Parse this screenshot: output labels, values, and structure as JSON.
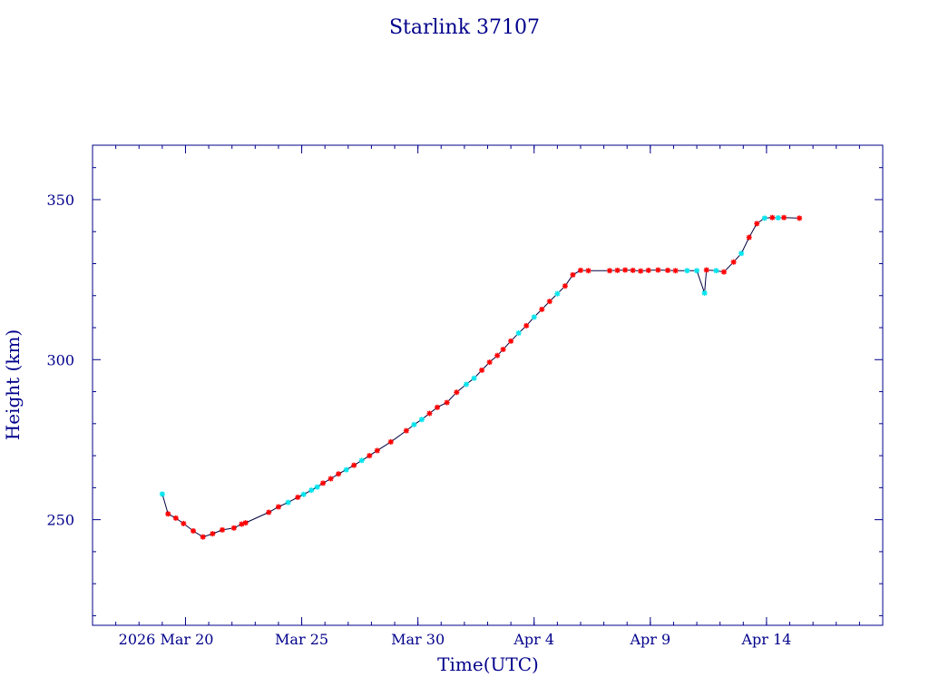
{
  "chart_data": {
    "type": "scatter",
    "title": "Starlink 37107",
    "xlabel": "Time(UTC)",
    "ylabel": "Height (km)",
    "x_tick_labels": [
      "2026 Mar 20",
      "Mar 25",
      "Mar 30",
      "Apr  4",
      "Apr  9",
      "Apr 14"
    ],
    "x_tick_dates": [
      "2026-03-20",
      "2026-03-25",
      "2026-03-30",
      "2026-04-04",
      "2026-04-09",
      "2026-04-14"
    ],
    "y_tick_labels": [
      "250",
      "300",
      "350"
    ],
    "y_ticks": [
      250,
      300,
      350
    ],
    "xlim": [
      "2026-03-16T00:00",
      "2026-04-19T00:00"
    ],
    "ylim": [
      217,
      367
    ],
    "grid": false,
    "legend": false,
    "colors": {
      "axes": "#00008b",
      "line": "#000040",
      "series_red": "#ff0000",
      "series_cyan": "#00e5ee"
    },
    "points": [
      {
        "x": "2026-03-19T00:00",
        "y": 258.0,
        "c": "cyan"
      },
      {
        "x": "2026-03-19T06:00",
        "y": 251.8,
        "c": "red"
      },
      {
        "x": "2026-03-19T14:00",
        "y": 250.5,
        "c": "red"
      },
      {
        "x": "2026-03-19T22:00",
        "y": 248.8,
        "c": "red"
      },
      {
        "x": "2026-03-20T08:00",
        "y": 246.5,
        "c": "red"
      },
      {
        "x": "2026-03-20T18:00",
        "y": 244.6,
        "c": "red"
      },
      {
        "x": "2026-03-21T04:00",
        "y": 245.6,
        "c": "red"
      },
      {
        "x": "2026-03-21T14:00",
        "y": 246.8,
        "c": "red"
      },
      {
        "x": "2026-03-22T02:00",
        "y": 247.4,
        "c": "red"
      },
      {
        "x": "2026-03-22T10:00",
        "y": 248.6,
        "c": "red"
      },
      {
        "x": "2026-03-22T14:00",
        "y": 249.0,
        "c": "red"
      },
      {
        "x": "2026-03-23T14:00",
        "y": 252.3,
        "c": "red"
      },
      {
        "x": "2026-03-24T00:00",
        "y": 254.0,
        "c": "red"
      },
      {
        "x": "2026-03-24T10:00",
        "y": 255.4,
        "c": "cyan"
      },
      {
        "x": "2026-03-24T20:00",
        "y": 257.0,
        "c": "red"
      },
      {
        "x": "2026-03-25T02:00",
        "y": 257.9,
        "c": "cyan"
      },
      {
        "x": "2026-03-25T10:00",
        "y": 259.2,
        "c": "cyan"
      },
      {
        "x": "2026-03-25T16:00",
        "y": 260.2,
        "c": "cyan"
      },
      {
        "x": "2026-03-25T22:00",
        "y": 261.4,
        "c": "red"
      },
      {
        "x": "2026-03-26T06:00",
        "y": 262.8,
        "c": "red"
      },
      {
        "x": "2026-03-26T14:00",
        "y": 264.3,
        "c": "red"
      },
      {
        "x": "2026-03-26T22:00",
        "y": 265.6,
        "c": "cyan"
      },
      {
        "x": "2026-03-27T06:00",
        "y": 267.0,
        "c": "red"
      },
      {
        "x": "2026-03-27T14:00",
        "y": 268.5,
        "c": "cyan"
      },
      {
        "x": "2026-03-27T22:00",
        "y": 270.0,
        "c": "red"
      },
      {
        "x": "2026-03-28T06:00",
        "y": 271.6,
        "c": "red"
      },
      {
        "x": "2026-03-28T20:00",
        "y": 274.3,
        "c": "red"
      },
      {
        "x": "2026-03-29T12:00",
        "y": 277.8,
        "c": "red"
      },
      {
        "x": "2026-03-29T20:00",
        "y": 279.7,
        "c": "cyan"
      },
      {
        "x": "2026-03-30T04:00",
        "y": 281.3,
        "c": "cyan"
      },
      {
        "x": "2026-03-30T12:00",
        "y": 283.2,
        "c": "red"
      },
      {
        "x": "2026-03-30T20:00",
        "y": 285.1,
        "c": "red"
      },
      {
        "x": "2026-03-31T06:00",
        "y": 286.6,
        "c": "red"
      },
      {
        "x": "2026-03-31T16:00",
        "y": 289.8,
        "c": "red"
      },
      {
        "x": "2026-04-01T02:00",
        "y": 292.3,
        "c": "cyan"
      },
      {
        "x": "2026-04-01T10:00",
        "y": 294.2,
        "c": "cyan"
      },
      {
        "x": "2026-04-01T18:00",
        "y": 296.7,
        "c": "red"
      },
      {
        "x": "2026-04-02T02:00",
        "y": 299.2,
        "c": "red"
      },
      {
        "x": "2026-04-02T10:00",
        "y": 301.3,
        "c": "red"
      },
      {
        "x": "2026-04-02T16:00",
        "y": 303.2,
        "c": "red"
      },
      {
        "x": "2026-04-03T00:00",
        "y": 305.8,
        "c": "red"
      },
      {
        "x": "2026-04-03T08:00",
        "y": 308.3,
        "c": "cyan"
      },
      {
        "x": "2026-04-03T16:00",
        "y": 310.6,
        "c": "red"
      },
      {
        "x": "2026-04-04T00:00",
        "y": 313.3,
        "c": "cyan"
      },
      {
        "x": "2026-04-04T08:00",
        "y": 315.7,
        "c": "red"
      },
      {
        "x": "2026-04-04T16:00",
        "y": 318.2,
        "c": "red"
      },
      {
        "x": "2026-04-05T00:00",
        "y": 320.6,
        "c": "cyan"
      },
      {
        "x": "2026-04-05T08:00",
        "y": 323.0,
        "c": "red"
      },
      {
        "x": "2026-04-05T16:00",
        "y": 326.5,
        "c": "red"
      },
      {
        "x": "2026-04-06T00:00",
        "y": 327.9,
        "c": "red"
      },
      {
        "x": "2026-04-06T08:00",
        "y": 327.8,
        "c": "red"
      },
      {
        "x": "2026-04-07T06:00",
        "y": 327.8,
        "c": "red"
      },
      {
        "x": "2026-04-07T14:00",
        "y": 327.9,
        "c": "red"
      },
      {
        "x": "2026-04-07T22:00",
        "y": 328.0,
        "c": "red"
      },
      {
        "x": "2026-04-08T06:00",
        "y": 327.9,
        "c": "red"
      },
      {
        "x": "2026-04-08T14:00",
        "y": 327.7,
        "c": "red"
      },
      {
        "x": "2026-04-08T22:00",
        "y": 327.9,
        "c": "red"
      },
      {
        "x": "2026-04-09T08:00",
        "y": 328.0,
        "c": "red"
      },
      {
        "x": "2026-04-09T18:00",
        "y": 327.9,
        "c": "red"
      },
      {
        "x": "2026-04-10T02:00",
        "y": 327.8,
        "c": "red"
      },
      {
        "x": "2026-04-10T14:00",
        "y": 327.8,
        "c": "cyan"
      },
      {
        "x": "2026-04-11T00:00",
        "y": 327.8,
        "c": "cyan"
      },
      {
        "x": "2026-04-11T08:00",
        "y": 320.8,
        "c": "cyan"
      },
      {
        "x": "2026-04-11T10:00",
        "y": 328.0,
        "c": "red"
      },
      {
        "x": "2026-04-11T20:00",
        "y": 327.8,
        "c": "cyan"
      },
      {
        "x": "2026-04-12T04:00",
        "y": 327.4,
        "c": "red"
      },
      {
        "x": "2026-04-12T14:00",
        "y": 330.5,
        "c": "red"
      },
      {
        "x": "2026-04-12T22:00",
        "y": 333.2,
        "c": "cyan"
      },
      {
        "x": "2026-04-13T06:00",
        "y": 338.2,
        "c": "red"
      },
      {
        "x": "2026-04-13T14:00",
        "y": 342.5,
        "c": "red"
      },
      {
        "x": "2026-04-13T22:00",
        "y": 344.2,
        "c": "cyan"
      },
      {
        "x": "2026-04-14T06:00",
        "y": 344.4,
        "c": "red"
      },
      {
        "x": "2026-04-14T12:00",
        "y": 344.3,
        "c": "cyan"
      },
      {
        "x": "2026-04-14T18:00",
        "y": 344.4,
        "c": "red"
      },
      {
        "x": "2026-04-15T10:00",
        "y": 344.2,
        "c": "red"
      }
    ]
  }
}
